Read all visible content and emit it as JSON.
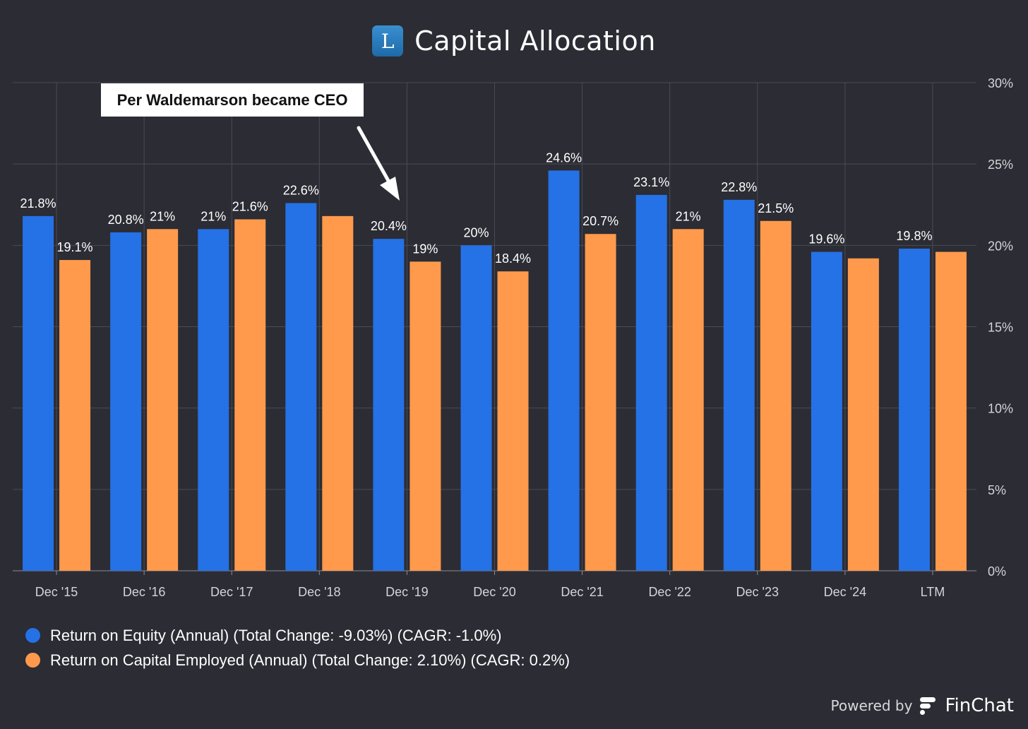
{
  "header": {
    "logo_letter": "L",
    "title": "Capital Allocation"
  },
  "annotation": {
    "text": "Per Waldemarson became CEO"
  },
  "colors": {
    "background": "#2b2c34",
    "roe": "#2571e6",
    "roce": "#ff9a4c",
    "grid": "#4a4b55"
  },
  "legend": [
    {
      "label": "Return on Equity (Annual) (Total Change: -9.03%) (CAGR: -1.0%)",
      "color": "#2571e6"
    },
    {
      "label": "Return on Capital Employed (Annual) (Total Change: 2.10%) (CAGR: 0.2%)",
      "color": "#ff9a4c"
    }
  ],
  "footer": {
    "powered_by": "Powered by",
    "brand": "FinChat"
  },
  "chart_data": {
    "type": "bar",
    "categories": [
      "Dec '15",
      "Dec '16",
      "Dec '17",
      "Dec '18",
      "Dec '19",
      "Dec '20",
      "Dec '21",
      "Dec '22",
      "Dec '23",
      "Dec '24",
      "LTM"
    ],
    "series": [
      {
        "name": "Return on Equity (Annual) (Total Change: -9.03%) (CAGR: -1.0%)",
        "color": "#2571e6",
        "values": [
          21.8,
          20.8,
          21,
          22.6,
          20.4,
          20,
          24.6,
          23.1,
          22.8,
          19.6,
          19.8
        ],
        "labels": [
          "21.8%",
          "20.8%",
          "21%",
          "22.6%",
          "20.4%",
          "20%",
          "24.6%",
          "23.1%",
          "22.8%",
          "19.6%",
          "19.8%"
        ]
      },
      {
        "name": "Return on Capital Employed (Annual) (Total Change: 2.10%) (CAGR: 0.2%)",
        "color": "#ff9a4c",
        "values": [
          19.1,
          21,
          21.6,
          21.8,
          19,
          18.4,
          20.7,
          21,
          21.5,
          19.2,
          19.6
        ],
        "labels": [
          "19.1%",
          "21%",
          "21.6%",
          "",
          "19%",
          "18.4%",
          "20.7%",
          "21%",
          "21.5%",
          "",
          ""
        ]
      }
    ],
    "ylim": [
      0,
      30
    ],
    "yticks": [
      0,
      5,
      10,
      15,
      20,
      25,
      30
    ],
    "ytick_labels": [
      "0%",
      "5%",
      "10%",
      "15%",
      "20%",
      "25%",
      "30%"
    ],
    "y_axis_side": "right",
    "grid": true,
    "legend_position": "bottom-left",
    "annotation": {
      "text": "Per Waldemarson became CEO",
      "points_to": "Dec '19"
    }
  }
}
